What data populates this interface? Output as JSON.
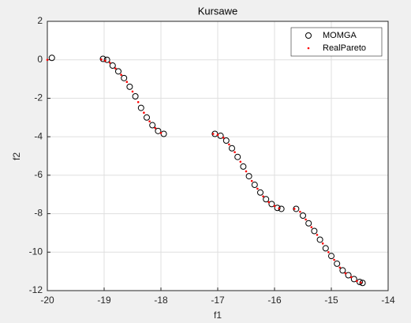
{
  "chart_data": {
    "type": "scatter",
    "title": "Kursawe",
    "x_label": "f1",
    "y_label": "f2",
    "xlim": [
      -20,
      -14
    ],
    "xticks": [
      -20,
      -19,
      -18,
      -17,
      -16,
      -15,
      -14
    ],
    "ylim": [
      -12,
      2
    ],
    "yticks": [
      -12,
      -10,
      -8,
      -6,
      -4,
      -2,
      0,
      2
    ],
    "grid": true,
    "legend": "top-right",
    "series": [
      {
        "name": "MOMGA",
        "color": "#000000",
        "marker": "open-circle",
        "x": [
          -19.92,
          -19.02,
          -18.95,
          -18.85,
          -18.75,
          -18.65,
          -18.55,
          -18.45,
          -18.35,
          -18.25,
          -18.15,
          -18.05,
          -17.95,
          -17.05,
          -16.95,
          -16.85,
          -16.75,
          -16.65,
          -16.55,
          -16.45,
          -16.35,
          -16.25,
          -16.15,
          -16.05,
          -15.95,
          -15.88,
          -15.62,
          -15.5,
          -15.4,
          -15.3,
          -15.2,
          -15.1,
          -15.0,
          -14.9,
          -14.8,
          -14.7,
          -14.6,
          -14.5,
          -14.45
        ],
        "values": [
          0.1,
          0.05,
          0.0,
          -0.3,
          -0.6,
          -0.95,
          -1.4,
          -1.9,
          -2.5,
          -3.0,
          -3.4,
          -3.7,
          -3.85,
          -3.85,
          -3.95,
          -4.2,
          -4.6,
          -5.05,
          -5.55,
          -6.05,
          -6.5,
          -6.9,
          -7.25,
          -7.5,
          -7.7,
          -7.75,
          -7.75,
          -8.1,
          -8.5,
          -8.9,
          -9.35,
          -9.8,
          -10.2,
          -10.6,
          -10.95,
          -11.2,
          -11.4,
          -11.55,
          -11.6
        ]
      },
      {
        "name": "RealPareto",
        "color": "#ff0000",
        "marker": "dot",
        "x": [
          -20.0,
          -19.05,
          -18.98,
          -18.9,
          -18.8,
          -18.7,
          -18.6,
          -18.5,
          -18.4,
          -18.3,
          -18.2,
          -18.1,
          -18.0,
          -17.08,
          -17.0,
          -16.9,
          -16.8,
          -16.7,
          -16.6,
          -16.5,
          -16.4,
          -16.3,
          -16.2,
          -16.1,
          -16.0,
          -15.92,
          -15.65,
          -15.55,
          -15.45,
          -15.35,
          -15.25,
          -15.15,
          -15.05,
          -14.95,
          -14.85,
          -14.75,
          -14.65,
          -14.55,
          -14.48
        ],
        "values": [
          0.0,
          0.02,
          -0.05,
          -0.15,
          -0.45,
          -0.78,
          -1.15,
          -1.65,
          -2.2,
          -2.75,
          -3.2,
          -3.55,
          -3.8,
          -3.85,
          -3.9,
          -4.05,
          -4.4,
          -4.8,
          -5.3,
          -5.8,
          -6.3,
          -6.7,
          -7.1,
          -7.4,
          -7.6,
          -7.72,
          -7.75,
          -7.9,
          -8.3,
          -8.7,
          -9.1,
          -9.55,
          -10.0,
          -10.4,
          -10.8,
          -11.1,
          -11.3,
          -11.5,
          -11.58
        ]
      }
    ]
  }
}
